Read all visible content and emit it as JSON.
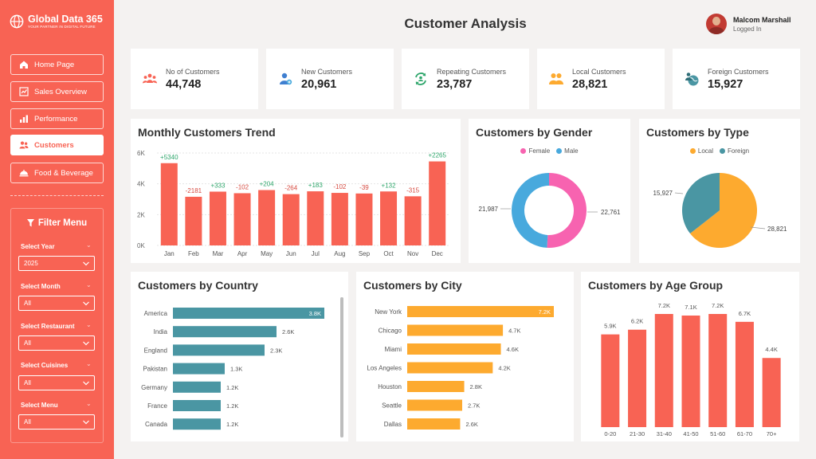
{
  "brand": {
    "name": "Global Data 365",
    "tagline": "YOUR PARTNER IN DIGITAL FUTURE"
  },
  "nav": {
    "items": [
      {
        "label": "Home Page",
        "icon": "home-icon"
      },
      {
        "label": "Sales Overview",
        "icon": "sales-icon"
      },
      {
        "label": "Performance",
        "icon": "performance-icon"
      },
      {
        "label": "Customers",
        "icon": "customers-icon",
        "active": true
      },
      {
        "label": "Food & Beverage",
        "icon": "food-icon"
      }
    ]
  },
  "filters": {
    "title": "Filter Menu",
    "items": [
      {
        "label": "Select Year",
        "value": "2025"
      },
      {
        "label": "Select Month",
        "value": "All"
      },
      {
        "label": "Select Restaurant",
        "value": "All"
      },
      {
        "label": "Select Cuisines",
        "value": "All"
      },
      {
        "label": "Select Menu",
        "value": "All"
      }
    ]
  },
  "header": {
    "title": "Customer Analysis"
  },
  "user": {
    "name": "Malcom Marshall",
    "status": "Logged In"
  },
  "kpis": [
    {
      "label": "No of Customers",
      "value": "44,748",
      "icon": "customers-group-icon"
    },
    {
      "label": "New Customers",
      "value": "20,961",
      "icon": "new-customer-icon"
    },
    {
      "label": "Repeating Customers",
      "value": "23,787",
      "icon": "repeat-customer-icon"
    },
    {
      "label": "Local Customers",
      "value": "28,821",
      "icon": "local-customers-icon"
    },
    {
      "label": "Foreign Customers",
      "value": "15,927",
      "icon": "foreign-customers-icon"
    }
  ],
  "colors": {
    "accent": "#f86354",
    "teal": "#4a96a3",
    "orange": "#fdaa2f",
    "pink": "#f763b0",
    "blue": "#48a9dd",
    "positive": "#2ea66b",
    "negative": "#d6493f"
  },
  "chart_data": [
    {
      "id": "monthly",
      "type": "bar",
      "title": "Monthly Customers Trend",
      "categories": [
        "Jan",
        "Feb",
        "Mar",
        "Apr",
        "May",
        "Jun",
        "Jul",
        "Aug",
        "Sep",
        "Oct",
        "Nov",
        "Dec"
      ],
      "values": [
        5340,
        3159,
        3492,
        3390,
        3594,
        3330,
        3513,
        3411,
        3372,
        3504,
        3189,
        5454
      ],
      "annotations": [
        "+5340",
        "-2181",
        "+333",
        "-102",
        "+204",
        "-264",
        "+183",
        "-102",
        "-39",
        "+132",
        "-315",
        "+2265"
      ],
      "yticks": [
        "0K",
        "2K",
        "4K",
        "6K"
      ],
      "ylim": [
        0,
        6000
      ]
    },
    {
      "id": "gender",
      "type": "pie",
      "title": "Customers by Gender",
      "labels": [
        "Female",
        "Male"
      ],
      "values": [
        22761,
        21987
      ],
      "data_labels": [
        "22,761",
        "21,987"
      ]
    },
    {
      "id": "type",
      "type": "pie",
      "title": "Customers by Type",
      "labels": [
        "Local",
        "Foreign"
      ],
      "values": [
        28821,
        15927
      ],
      "data_labels": [
        "28,821",
        "15,927"
      ]
    },
    {
      "id": "country",
      "type": "bar",
      "title": "Customers by Country",
      "categories": [
        "America",
        "India",
        "England",
        "Pakistan",
        "Germany",
        "France",
        "Canada"
      ],
      "values": [
        3800,
        2600,
        2300,
        1300,
        1200,
        1200,
        1200
      ],
      "data_labels": [
        "3.8K",
        "2.6K",
        "2.3K",
        "1.3K",
        "1.2K",
        "1.2K",
        "1.2K"
      ]
    },
    {
      "id": "city",
      "type": "bar",
      "title": "Customers by City",
      "categories": [
        "New York",
        "Chicago",
        "Miami",
        "Los Angeles",
        "Houston",
        "Seattle",
        "Dallas"
      ],
      "values": [
        7200,
        4700,
        4600,
        4200,
        2800,
        2700,
        2600
      ],
      "data_labels": [
        "7.2K",
        "4.7K",
        "4.6K",
        "4.2K",
        "2.8K",
        "2.7K",
        "2.6K"
      ]
    },
    {
      "id": "age",
      "type": "bar",
      "title": "Customers by Age Group",
      "categories": [
        "0-20",
        "21-30",
        "31-40",
        "41-50",
        "51-60",
        "61-70",
        "70+"
      ],
      "values": [
        5900,
        6200,
        7200,
        7100,
        7200,
        6700,
        4400
      ],
      "data_labels": [
        "5.9K",
        "6.2K",
        "7.2K",
        "7.1K",
        "7.2K",
        "6.7K",
        "4.4K"
      ]
    }
  ]
}
